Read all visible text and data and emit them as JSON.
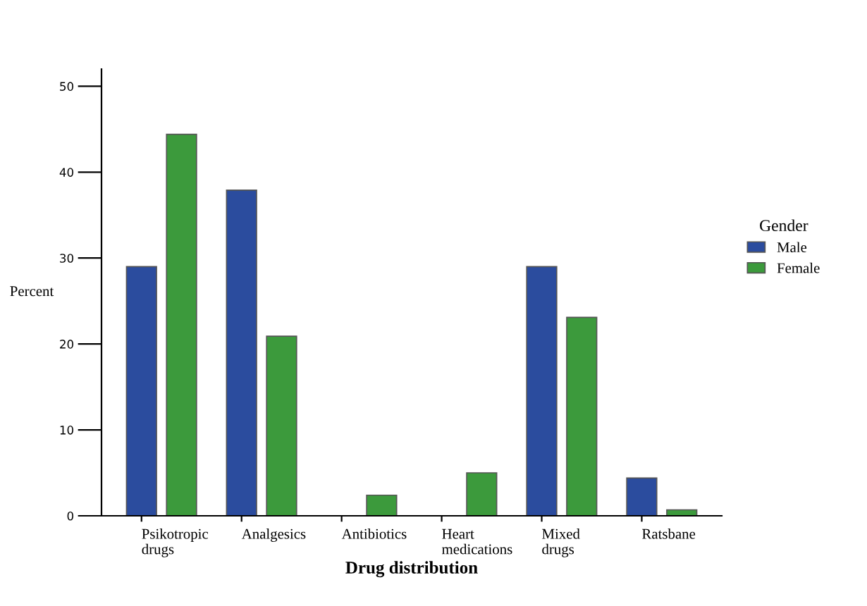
{
  "chart_data": {
    "type": "bar",
    "xlabel": "Drug distribution",
    "ylabel": "Percent",
    "legend_title": "Gender",
    "categories": [
      "Psikotropic\ndrugs",
      "Analgesics",
      "Antibiotics",
      "Heart\nmedications",
      "Mixed\ndrugs",
      "Ratsbane"
    ],
    "series": [
      {
        "name": "Male",
        "color": "#2b4c9e",
        "values": [
          29.0,
          37.9,
          0,
          0,
          29.0,
          4.4
        ]
      },
      {
        "name": "Female",
        "color": "#3c9a3c",
        "values": [
          44.4,
          20.9,
          2.4,
          5.0,
          23.1,
          0.7
        ]
      }
    ],
    "ylim": [
      0,
      52
    ],
    "yticks": [
      0,
      10,
      20,
      30,
      40,
      50
    ],
    "grid": false,
    "legend": "right"
  }
}
